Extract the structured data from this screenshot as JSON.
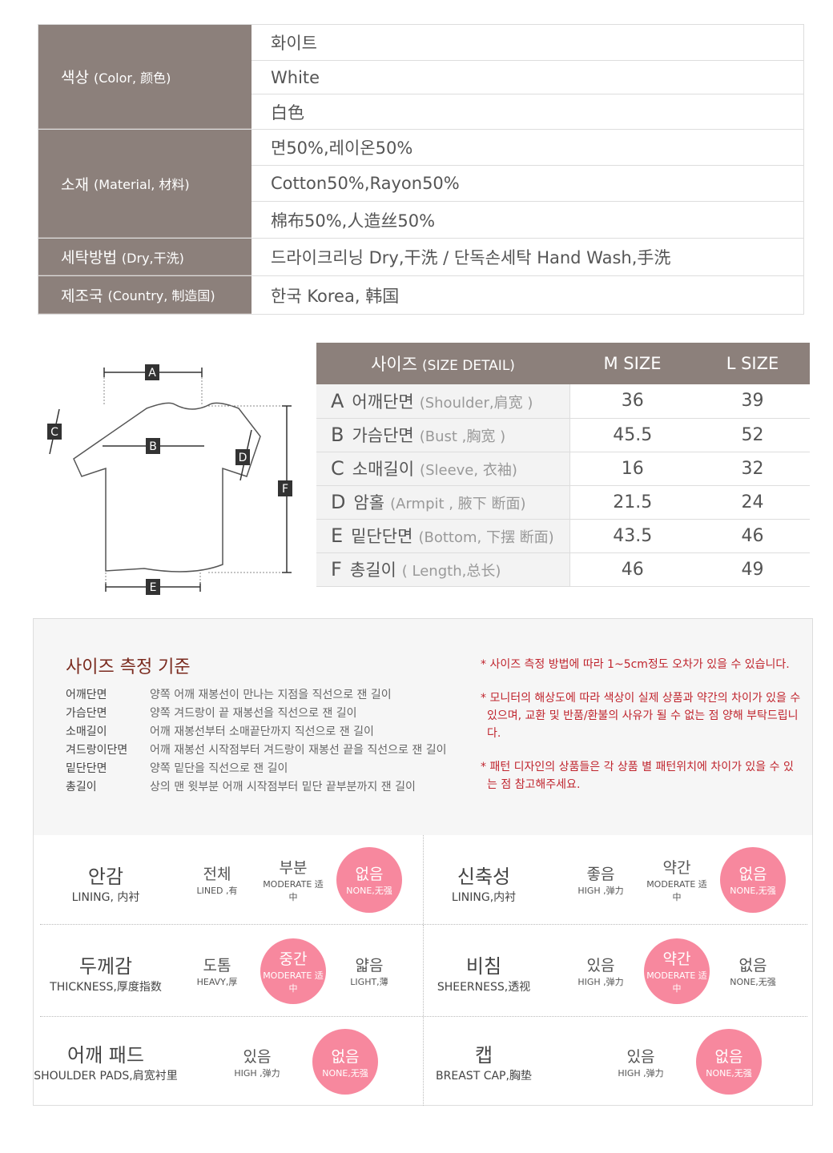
{
  "info": [
    {
      "label": "색상",
      "label_sub": "(Color, 颜色)",
      "values": [
        "화이트",
        "White",
        "白色"
      ]
    },
    {
      "label": "소재",
      "label_sub": "(Material, 材料)",
      "values": [
        "면50%,레이온50%",
        "Cotton50%,Rayon50%",
        "棉布50%,人造丝50%"
      ]
    },
    {
      "label": "세탁방법",
      "label_sub": "(Dry,干洗)",
      "values": [
        "드라이크리닝 Dry,干洗 / 단독손세탁 Hand Wash,手洗"
      ]
    },
    {
      "label": "제조국",
      "label_sub": "(Country, 制造国)",
      "values": [
        "한국 Korea, 韩国"
      ]
    }
  ],
  "diagram": {
    "labels": [
      "A",
      "B",
      "C",
      "D",
      "E",
      "F"
    ]
  },
  "size_table": {
    "header": {
      "label": "사이즈",
      "label_sub": "(SIZE DETAIL)",
      "cols": [
        "M SIZE",
        "L SIZE"
      ]
    },
    "rows": [
      {
        "key": "A",
        "name": "어깨단면",
        "en": "(Shoulder,肩宽 )",
        "m": "36",
        "l": "39"
      },
      {
        "key": "B",
        "name": "가슴단면",
        "en": "(Bust ,胸宽 )",
        "m": "45.5",
        "l": "52"
      },
      {
        "key": "C",
        "name": "소매길이",
        "en": "(Sleeve, 衣袖)",
        "m": "16",
        "l": "32"
      },
      {
        "key": "D",
        "name": "암홀",
        "en": "(Armpit , 腋下 断面)",
        "m": "21.5",
        "l": "24"
      },
      {
        "key": "E",
        "name": "밑단단면",
        "en": "(Bottom, 下摆 断面)",
        "m": "43.5",
        "l": "46"
      },
      {
        "key": "F",
        "name": "총길이",
        "en": "( Length,总长)",
        "m": "46",
        "l": "49"
      }
    ]
  },
  "criteria": {
    "title": "사이즈 측정 기준",
    "items": [
      {
        "n": "어깨단면",
        "d": "양쪽 어깨 재봉선이 만나는 지점을 직선으로 잰 길이"
      },
      {
        "n": "가슴단면",
        "d": "양쪽 겨드랑이 끝 재봉선을 직선으로 잰 길이"
      },
      {
        "n": "소매길이",
        "d": "어깨 재봉선부터 소매끝단까지 직선으로 잰 길이"
      },
      {
        "n": "겨드랑이단면",
        "d": "어깨 재봉선 시작점부터 겨드랑이 재봉선 끝을 직선으로 잰 길이"
      },
      {
        "n": "밑단단면",
        "d": "양쪽 밑단을 직선으로 잰 길이"
      },
      {
        "n": "총길이",
        "d": "상의 맨 윗부분 어깨 시작점부터 밑단 끝부분까지 잰 길이"
      }
    ],
    "notes": [
      "* 사이즈 측정 방법에 따라 1~5cm정도 오차가 있을 수 있습니다.",
      "* 모니터의 해상도에 따라 색상이 실제 상품과 약간의 차이가 있을 수 있으며, 교환 및 반품/환불의 사유가 될 수 없는 점 양해 부탁드립니다.",
      "* 패턴 디자인의 상품들은 각 상품 별 패턴위치에 차이가 있을 수 있는 점 참고해주세요."
    ]
  },
  "attributes": [
    {
      "k": "안감",
      "e": "LINING, 内衬",
      "opts": [
        {
          "k": "전체",
          "e": "LINED ,有"
        },
        {
          "k": "부분",
          "e": "MODERATE 适中"
        },
        {
          "k": "없음",
          "e": "NONE,无强"
        }
      ],
      "selected": 2
    },
    {
      "k": "신축성",
      "e": "LINING,内衬",
      "opts": [
        {
          "k": "좋음",
          "e": "HIGH ,弹力"
        },
        {
          "k": "약간",
          "e": "MODERATE 适中"
        },
        {
          "k": "없음",
          "e": "NONE,无强"
        }
      ],
      "selected": 2
    },
    {
      "k": "두께감",
      "e": "THICKNESS,厚度指数",
      "opts": [
        {
          "k": "도톰",
          "e": "HEAVY,厚"
        },
        {
          "k": "중간",
          "e": "MODERATE 适中"
        },
        {
          "k": "얇음",
          "e": "LIGHT,薄"
        }
      ],
      "selected": 1
    },
    {
      "k": "비침",
      "e": "SHEERNESS,透视",
      "opts": [
        {
          "k": "있음",
          "e": "HIGH ,弹力"
        },
        {
          "k": "약간",
          "e": "MODERATE 适中"
        },
        {
          "k": "없음",
          "e": "NONE,无强"
        }
      ],
      "selected": 1
    },
    {
      "k": "어깨 패드",
      "e": "SHOULDER PADS,肩宽衬里",
      "opts": [
        {
          "k": "있음",
          "e": "HIGH ,弹力"
        },
        {
          "k": "없음",
          "e": "NONE,无强"
        }
      ],
      "selected": 1
    },
    {
      "k": "캡",
      "e": "BREAST CAP,胸垫",
      "opts": [
        {
          "k": "있음",
          "e": "HIGH ,弹力"
        },
        {
          "k": "없음",
          "e": "NONE,无强"
        }
      ],
      "selected": 1
    }
  ],
  "colors": {
    "label_bg": "#8c807b",
    "selected": "#f7889e",
    "title": "#7a2a1e",
    "note": "#c0252e"
  }
}
